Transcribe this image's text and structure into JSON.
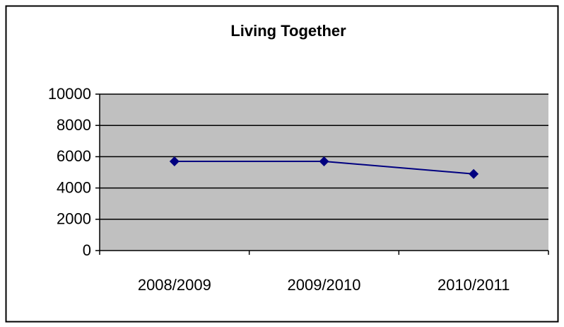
{
  "chart_data": {
    "type": "line",
    "title": "Living Together",
    "categories": [
      "2008/2009",
      "2009/2010",
      "2010/2011"
    ],
    "series": [
      {
        "name": "Living Together",
        "color": "#000080",
        "values": [
          5700,
          5700,
          4900
        ]
      }
    ],
    "ylim": [
      0,
      10000
    ],
    "yticks": [
      0,
      2000,
      4000,
      6000,
      8000,
      10000
    ],
    "grid": true
  }
}
